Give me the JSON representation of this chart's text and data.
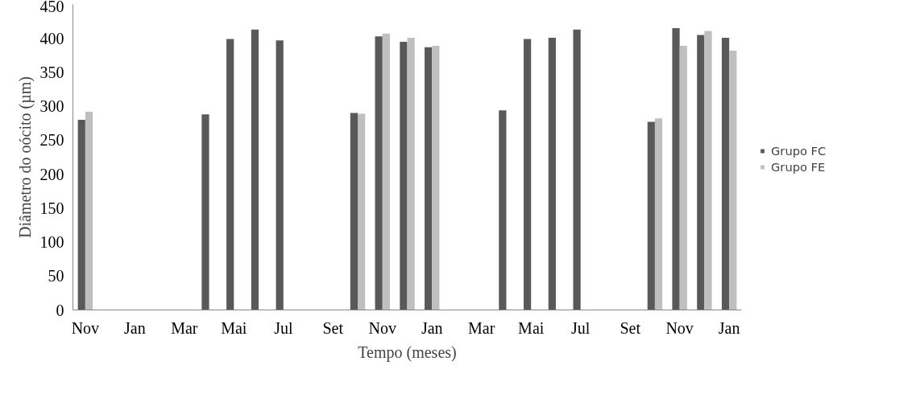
{
  "chart_data": {
    "type": "bar",
    "xlabel": "Tempo (meses)",
    "ylabel": "Diâmetro do oócito (µm)",
    "categories": [
      "Nov",
      null,
      "Jan",
      null,
      "Mar",
      null,
      "Mai",
      null,
      "Jul",
      null,
      "Set",
      null,
      "Nov",
      null,
      "Jan",
      null,
      "Mar",
      null,
      "Mai",
      null,
      "Jul",
      null,
      "Set",
      null,
      "Nov",
      null,
      "Jan"
    ],
    "series": [
      {
        "name": "Grupo FC",
        "color": "#595959",
        "values": [
          280,
          null,
          null,
          null,
          null,
          288,
          399,
          413,
          397,
          null,
          null,
          290,
          403,
          395,
          387,
          null,
          null,
          294,
          399,
          401,
          413,
          null,
          null,
          277,
          415,
          405,
          401
        ]
      },
      {
        "name": "Grupo FE",
        "color": "#bfbfbf",
        "values": [
          292,
          null,
          null,
          null,
          null,
          null,
          null,
          null,
          null,
          null,
          null,
          289,
          407,
          401,
          389,
          null,
          null,
          null,
          null,
          null,
          null,
          null,
          null,
          282,
          389,
          411,
          382
        ]
      }
    ],
    "ylim": [
      0,
      450
    ],
    "yticks": [
      0,
      50,
      100,
      150,
      200,
      250,
      300,
      350,
      400,
      450
    ],
    "grid": false,
    "legend": "right"
  }
}
